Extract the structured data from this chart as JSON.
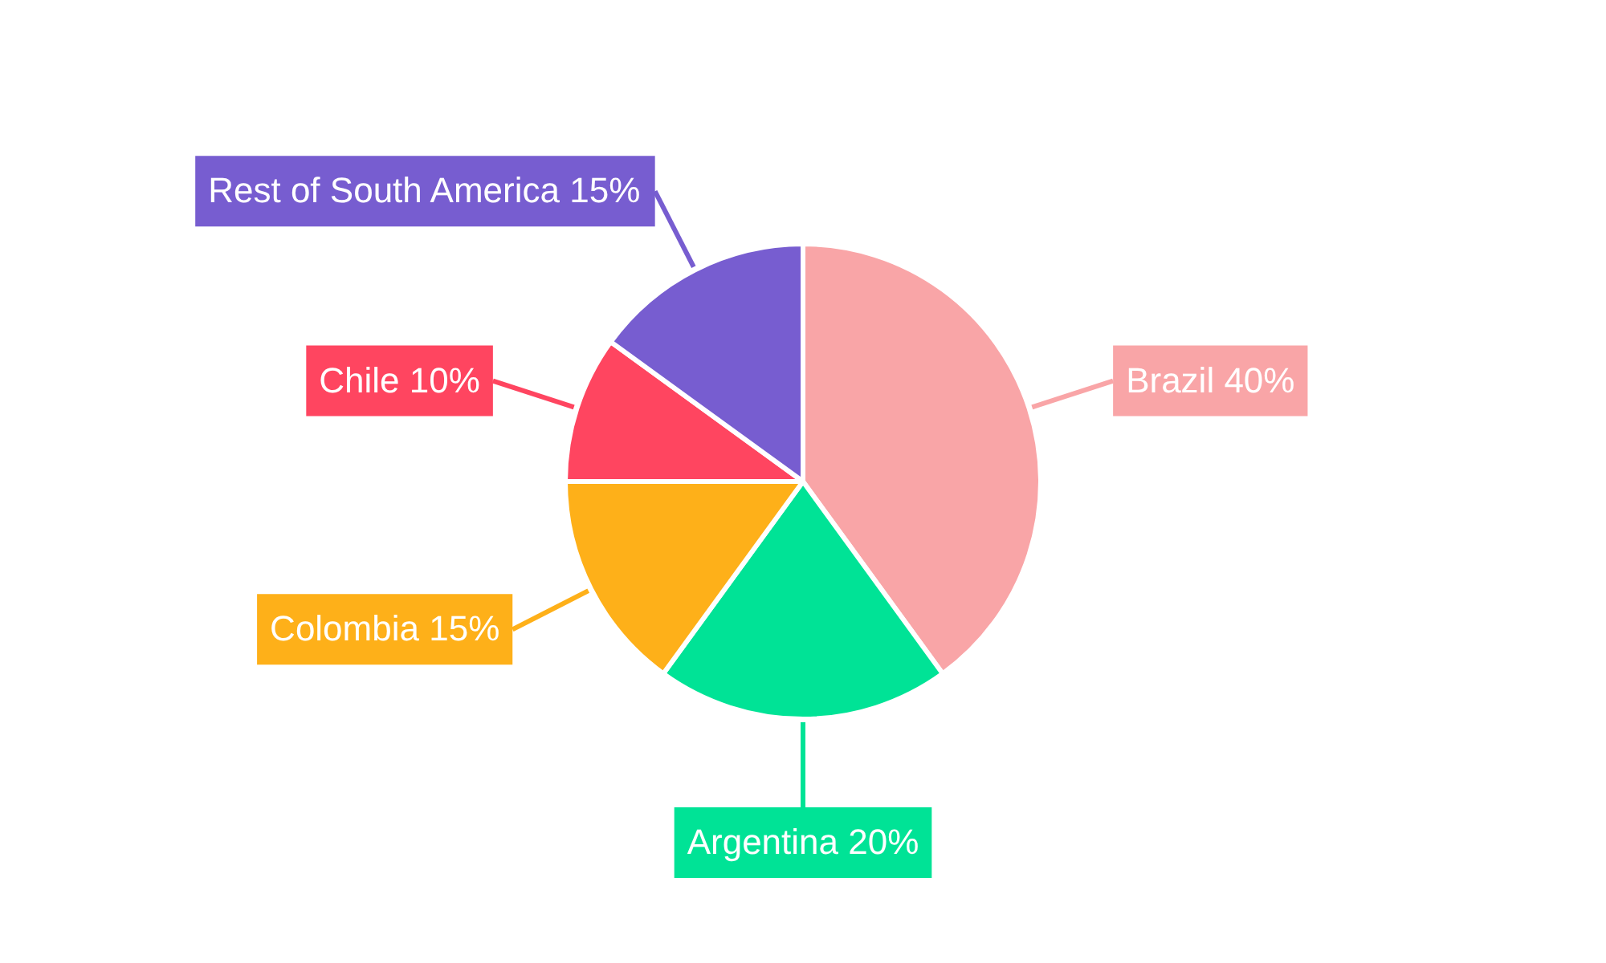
{
  "chart_data": {
    "type": "pie",
    "categories": [
      "Brazil",
      "Argentina",
      "Colombia",
      "Chile",
      "Rest of South America"
    ],
    "values": [
      40,
      20,
      15,
      10,
      15
    ],
    "value_labels": [
      "40%",
      "20%",
      "15%",
      "10%",
      "15%"
    ],
    "colors": [
      "#f9a5a7",
      "#00e396",
      "#feb019",
      "#ff4560",
      "#775dd0"
    ],
    "legend": false
  }
}
